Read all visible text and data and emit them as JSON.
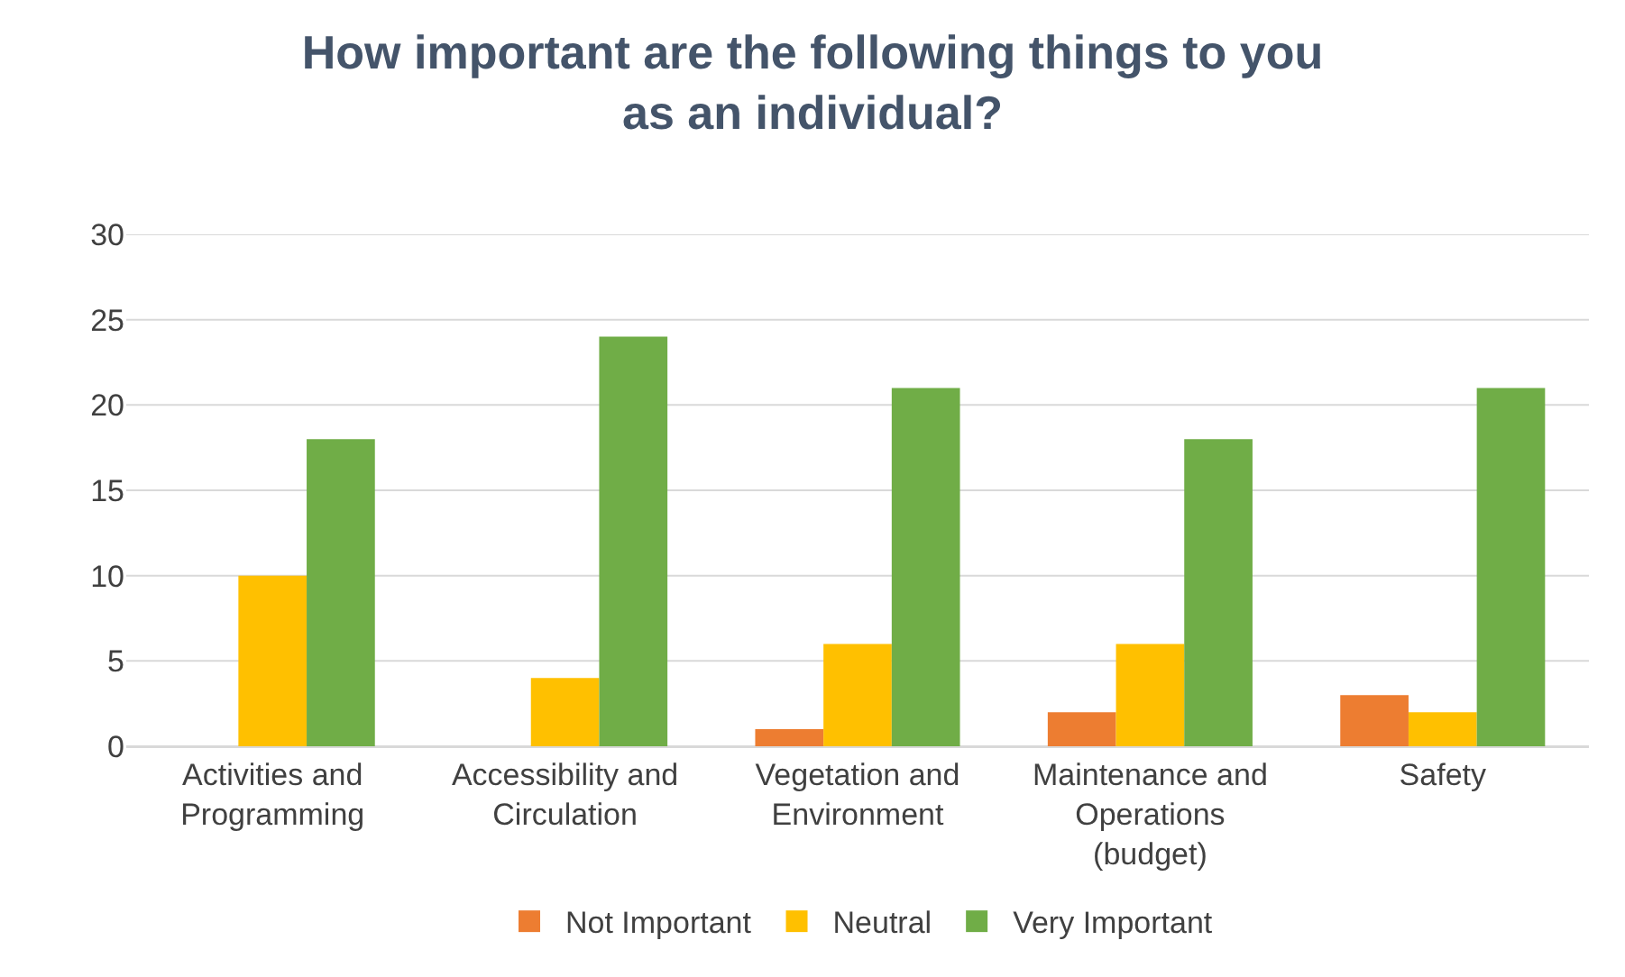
{
  "chart_data": {
    "type": "bar",
    "title": "How important are the following things to you as an individual?",
    "categories": [
      "Activities and Programming",
      "Accessibility and Circulation",
      "Vegetation and Environment",
      "Maintenance and Operations (budget)",
      "Safety"
    ],
    "series": [
      {
        "name": "Not Important",
        "color": "#ed7d31",
        "values": [
          0,
          0,
          1,
          2,
          3
        ]
      },
      {
        "name": "Neutral",
        "color": "#ffc000",
        "values": [
          10,
          4,
          6,
          6,
          2
        ]
      },
      {
        "name": "Very Important",
        "color": "#70ad47",
        "values": [
          18,
          24,
          21,
          18,
          21
        ]
      }
    ],
    "ylim": [
      0,
      30
    ],
    "yticks": [
      0,
      5,
      10,
      15,
      20,
      25,
      30
    ],
    "grid": "y",
    "legend": "bottom"
  }
}
